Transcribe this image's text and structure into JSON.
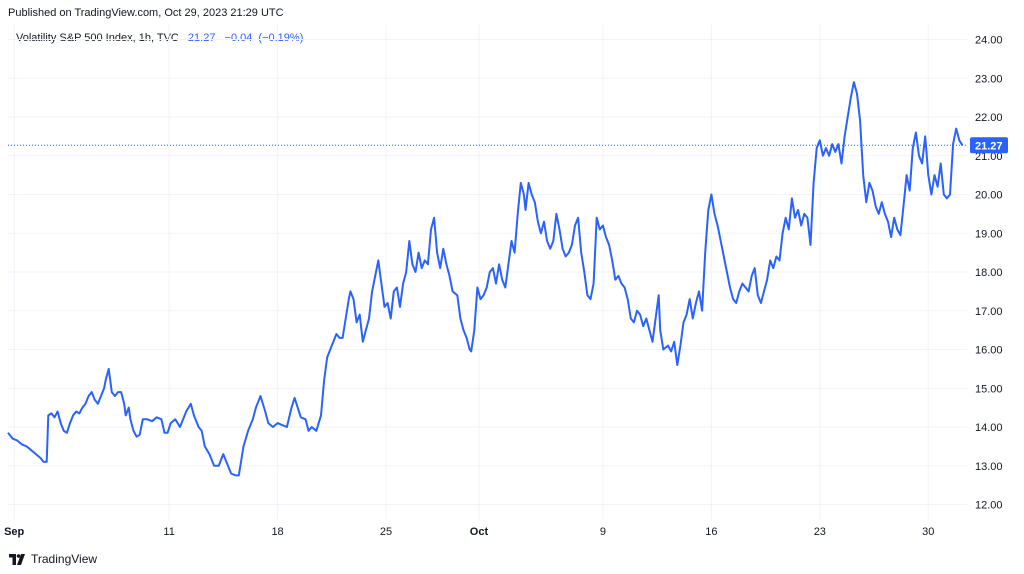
{
  "header": {
    "published": "Published on TradingView.com, Oct 29, 2023 21:29 UTC"
  },
  "legend": {
    "symbol": "Volatility S&P 500 Index, 1h, TVC",
    "last": "21.27",
    "change": "−0.04",
    "change_pct": "(−0.19%)"
  },
  "price_badge": "21.27",
  "footer": {
    "brand": "TradingView"
  },
  "colors": {
    "line": "#2962ff",
    "badge": "#2962ff",
    "grid": "#f0f3fa",
    "text": "#131722"
  },
  "chart_data": {
    "type": "line",
    "title": "",
    "xlabel": "",
    "ylabel": "",
    "x_ticks": [
      {
        "label": "Sep",
        "day": 0,
        "bold": true
      },
      {
        "label": "11",
        "day": 10
      },
      {
        "label": "18",
        "day": 17
      },
      {
        "label": "25",
        "day": 24
      },
      {
        "label": "Oct",
        "day": 30,
        "bold": true
      },
      {
        "label": "9",
        "day": 38
      },
      {
        "label": "16",
        "day": 45
      },
      {
        "label": "23",
        "day": 52
      },
      {
        "label": "30",
        "day": 59
      }
    ],
    "y_ticks": [
      "12.00",
      "13.00",
      "14.00",
      "15.00",
      "16.00",
      "17.00",
      "18.00",
      "19.00",
      "20.00",
      "21.00",
      "22.00",
      "23.00",
      "24.00"
    ],
    "ylim": [
      11.6,
      24.4
    ],
    "xlim": [
      0,
      59.5
    ],
    "last_value": 21.27,
    "series": [
      {
        "values": [
          [
            0.0,
            13.85
          ],
          [
            0.3,
            13.7
          ],
          [
            0.6,
            13.65
          ],
          [
            0.9,
            13.55
          ],
          [
            1.2,
            13.5
          ],
          [
            1.5,
            13.4
          ],
          [
            1.8,
            13.3
          ],
          [
            2.1,
            13.2
          ],
          [
            2.3,
            13.1
          ],
          [
            2.5,
            13.1
          ],
          [
            2.6,
            14.3
          ],
          [
            2.8,
            14.35
          ],
          [
            3.0,
            14.25
          ],
          [
            3.2,
            14.4
          ],
          [
            3.4,
            14.1
          ],
          [
            3.6,
            13.9
          ],
          [
            3.8,
            13.85
          ],
          [
            4.0,
            14.1
          ],
          [
            4.2,
            14.3
          ],
          [
            4.4,
            14.4
          ],
          [
            4.6,
            14.35
          ],
          [
            4.8,
            14.5
          ],
          [
            5.0,
            14.6
          ],
          [
            5.2,
            14.8
          ],
          [
            5.4,
            14.9
          ],
          [
            5.6,
            14.7
          ],
          [
            5.8,
            14.6
          ],
          [
            6.0,
            14.8
          ],
          [
            6.2,
            15.0
          ],
          [
            6.3,
            15.2
          ],
          [
            6.5,
            15.5
          ],
          [
            6.6,
            15.2
          ],
          [
            6.7,
            14.9
          ],
          [
            6.9,
            14.8
          ],
          [
            7.1,
            14.9
          ],
          [
            7.3,
            14.9
          ],
          [
            7.5,
            14.6
          ],
          [
            7.6,
            14.3
          ],
          [
            7.8,
            14.5
          ],
          [
            7.9,
            14.2
          ],
          [
            8.1,
            13.9
          ],
          [
            8.3,
            13.75
          ],
          [
            8.5,
            13.8
          ],
          [
            8.7,
            14.2
          ],
          [
            9.0,
            14.2
          ],
          [
            9.3,
            14.15
          ],
          [
            9.6,
            14.25
          ],
          [
            9.9,
            14.2
          ],
          [
            10.1,
            13.85
          ],
          [
            10.3,
            13.85
          ],
          [
            10.5,
            14.1
          ],
          [
            10.8,
            14.2
          ],
          [
            11.1,
            14.0
          ],
          [
            11.3,
            14.2
          ],
          [
            11.5,
            14.4
          ],
          [
            11.8,
            14.6
          ],
          [
            12.0,
            14.3
          ],
          [
            12.3,
            14.0
          ],
          [
            12.5,
            13.9
          ],
          [
            12.7,
            13.5
          ],
          [
            13.0,
            13.3
          ],
          [
            13.3,
            13.0
          ],
          [
            13.6,
            13.0
          ],
          [
            13.9,
            13.3
          ],
          [
            14.1,
            13.1
          ],
          [
            14.4,
            12.8
          ],
          [
            14.7,
            12.75
          ],
          [
            14.9,
            12.75
          ],
          [
            15.2,
            13.5
          ],
          [
            15.5,
            13.9
          ],
          [
            15.8,
            14.2
          ],
          [
            16.0,
            14.5
          ],
          [
            16.3,
            14.8
          ],
          [
            16.6,
            14.4
          ],
          [
            16.8,
            14.1
          ],
          [
            17.1,
            14.0
          ],
          [
            17.4,
            14.1
          ],
          [
            17.7,
            14.05
          ],
          [
            18.0,
            14.0
          ],
          [
            18.3,
            14.5
          ],
          [
            18.5,
            14.75
          ],
          [
            18.7,
            14.5
          ],
          [
            18.9,
            14.25
          ],
          [
            19.2,
            14.2
          ],
          [
            19.4,
            13.9
          ],
          [
            19.6,
            14.0
          ],
          [
            19.9,
            13.9
          ],
          [
            20.2,
            14.3
          ],
          [
            20.4,
            15.2
          ],
          [
            20.6,
            15.8
          ],
          [
            20.9,
            16.1
          ],
          [
            21.2,
            16.4
          ],
          [
            21.4,
            16.3
          ],
          [
            21.6,
            16.3
          ],
          [
            21.8,
            16.8
          ],
          [
            22.0,
            17.3
          ],
          [
            22.1,
            17.5
          ],
          [
            22.3,
            17.3
          ],
          [
            22.5,
            16.7
          ],
          [
            22.7,
            16.9
          ],
          [
            22.9,
            16.2
          ],
          [
            23.1,
            16.5
          ],
          [
            23.3,
            16.8
          ],
          [
            23.5,
            17.5
          ],
          [
            23.7,
            17.9
          ],
          [
            23.9,
            18.3
          ],
          [
            24.1,
            17.7
          ],
          [
            24.3,
            17.1
          ],
          [
            24.5,
            17.2
          ],
          [
            24.7,
            16.8
          ],
          [
            24.9,
            17.5
          ],
          [
            25.1,
            17.6
          ],
          [
            25.3,
            17.1
          ],
          [
            25.5,
            17.7
          ],
          [
            25.7,
            18.0
          ],
          [
            25.9,
            18.8
          ],
          [
            26.1,
            18.2
          ],
          [
            26.3,
            18.0
          ],
          [
            26.5,
            18.5
          ],
          [
            26.7,
            18.1
          ],
          [
            26.9,
            18.3
          ],
          [
            27.1,
            18.2
          ],
          [
            27.3,
            19.1
          ],
          [
            27.5,
            19.4
          ],
          [
            27.7,
            18.5
          ],
          [
            27.9,
            18.1
          ],
          [
            28.1,
            18.6
          ],
          [
            28.3,
            18.2
          ],
          [
            28.5,
            17.9
          ],
          [
            28.7,
            17.5
          ],
          [
            29.0,
            17.4
          ],
          [
            29.2,
            16.8
          ],
          [
            29.4,
            16.5
          ],
          [
            29.6,
            16.3
          ],
          [
            29.8,
            16.0
          ],
          [
            29.9,
            15.95
          ],
          [
            30.1,
            16.5
          ],
          [
            30.3,
            17.6
          ],
          [
            30.5,
            17.3
          ],
          [
            30.7,
            17.4
          ],
          [
            30.9,
            17.6
          ],
          [
            31.1,
            18.0
          ],
          [
            31.3,
            18.1
          ],
          [
            31.5,
            17.7
          ],
          [
            31.7,
            18.2
          ],
          [
            31.9,
            17.8
          ],
          [
            32.1,
            17.6
          ],
          [
            32.3,
            18.2
          ],
          [
            32.5,
            18.8
          ],
          [
            32.7,
            18.5
          ],
          [
            32.9,
            19.5
          ],
          [
            33.1,
            20.3
          ],
          [
            33.3,
            20.0
          ],
          [
            33.4,
            19.6
          ],
          [
            33.6,
            20.3
          ],
          [
            33.8,
            20.0
          ],
          [
            34.0,
            19.8
          ],
          [
            34.2,
            19.3
          ],
          [
            34.4,
            19.0
          ],
          [
            34.6,
            19.3
          ],
          [
            34.8,
            18.8
          ],
          [
            35.0,
            18.6
          ],
          [
            35.2,
            18.8
          ],
          [
            35.4,
            19.5
          ],
          [
            35.6,
            19.1
          ],
          [
            35.8,
            18.6
          ],
          [
            36.0,
            18.4
          ],
          [
            36.2,
            18.5
          ],
          [
            36.4,
            18.7
          ],
          [
            36.6,
            19.2
          ],
          [
            36.8,
            19.4
          ],
          [
            37.0,
            18.5
          ],
          [
            37.2,
            18.0
          ],
          [
            37.4,
            17.4
          ],
          [
            37.6,
            17.3
          ],
          [
            37.8,
            17.7
          ],
          [
            38.0,
            19.4
          ],
          [
            38.2,
            19.1
          ],
          [
            38.4,
            19.2
          ],
          [
            38.6,
            18.9
          ],
          [
            38.8,
            18.7
          ],
          [
            39.0,
            18.3
          ],
          [
            39.2,
            17.8
          ],
          [
            39.4,
            17.9
          ],
          [
            39.6,
            17.7
          ],
          [
            39.8,
            17.6
          ],
          [
            40.0,
            17.3
          ],
          [
            40.2,
            16.8
          ],
          [
            40.4,
            16.7
          ],
          [
            40.6,
            17.0
          ],
          [
            40.8,
            16.9
          ],
          [
            41.0,
            16.6
          ],
          [
            41.2,
            16.8
          ],
          [
            41.4,
            16.5
          ],
          [
            41.6,
            16.2
          ],
          [
            41.8,
            16.8
          ],
          [
            42.0,
            17.4
          ],
          [
            42.1,
            16.5
          ],
          [
            42.3,
            16.0
          ],
          [
            42.6,
            16.1
          ],
          [
            42.8,
            15.95
          ],
          [
            43.0,
            16.2
          ],
          [
            43.2,
            15.6
          ],
          [
            43.4,
            16.1
          ],
          [
            43.6,
            16.7
          ],
          [
            43.8,
            16.9
          ],
          [
            44.0,
            17.3
          ],
          [
            44.2,
            16.8
          ],
          [
            44.4,
            17.2
          ],
          [
            44.6,
            17.5
          ],
          [
            44.8,
            17.0
          ],
          [
            45.0,
            18.5
          ],
          [
            45.2,
            19.6
          ],
          [
            45.4,
            20.0
          ],
          [
            45.6,
            19.5
          ],
          [
            45.8,
            19.2
          ],
          [
            46.0,
            18.8
          ],
          [
            46.2,
            18.4
          ],
          [
            46.4,
            18.0
          ],
          [
            46.6,
            17.6
          ],
          [
            46.8,
            17.3
          ],
          [
            47.0,
            17.2
          ],
          [
            47.2,
            17.5
          ],
          [
            47.4,
            17.7
          ],
          [
            47.6,
            17.6
          ],
          [
            47.8,
            17.5
          ],
          [
            48.0,
            17.9
          ],
          [
            48.2,
            18.1
          ],
          [
            48.4,
            17.4
          ],
          [
            48.6,
            17.2
          ],
          [
            48.8,
            17.5
          ],
          [
            49.0,
            17.8
          ],
          [
            49.2,
            18.3
          ],
          [
            49.4,
            18.1
          ],
          [
            49.6,
            18.4
          ],
          [
            49.8,
            18.3
          ],
          [
            50.0,
            19.0
          ],
          [
            50.2,
            19.4
          ],
          [
            50.4,
            19.1
          ],
          [
            50.6,
            19.9
          ],
          [
            50.8,
            19.4
          ],
          [
            51.0,
            19.6
          ],
          [
            51.2,
            19.2
          ],
          [
            51.4,
            19.5
          ],
          [
            51.6,
            19.4
          ],
          [
            51.8,
            18.7
          ],
          [
            52.0,
            20.3
          ],
          [
            52.2,
            21.2
          ],
          [
            52.4,
            21.4
          ],
          [
            52.6,
            21.0
          ],
          [
            52.8,
            21.2
          ],
          [
            53.0,
            21.0
          ],
          [
            53.2,
            21.3
          ],
          [
            53.4,
            21.1
          ],
          [
            53.6,
            21.3
          ],
          [
            53.8,
            20.8
          ],
          [
            54.0,
            21.5
          ],
          [
            54.2,
            22.0
          ],
          [
            54.4,
            22.5
          ],
          [
            54.6,
            22.9
          ],
          [
            54.8,
            22.6
          ],
          [
            55.0,
            21.9
          ],
          [
            55.2,
            20.5
          ],
          [
            55.4,
            19.8
          ],
          [
            55.6,
            20.3
          ],
          [
            55.8,
            20.1
          ],
          [
            56.0,
            19.7
          ],
          [
            56.2,
            19.5
          ],
          [
            56.4,
            19.8
          ],
          [
            56.6,
            19.5
          ],
          [
            56.8,
            19.3
          ],
          [
            57.0,
            18.9
          ],
          [
            57.2,
            19.4
          ],
          [
            57.4,
            19.1
          ],
          [
            57.6,
            18.95
          ],
          [
            57.8,
            19.7
          ],
          [
            58.0,
            20.5
          ],
          [
            58.2,
            20.1
          ],
          [
            58.4,
            21.2
          ],
          [
            58.6,
            21.6
          ],
          [
            58.8,
            21.0
          ],
          [
            59.0,
            20.8
          ],
          [
            59.2,
            21.5
          ],
          [
            59.4,
            20.5
          ],
          [
            59.6,
            20.0
          ],
          [
            59.8,
            20.5
          ],
          [
            60.0,
            20.2
          ],
          [
            60.2,
            20.8
          ],
          [
            60.4,
            20.0
          ],
          [
            60.6,
            19.9
          ],
          [
            60.8,
            20.0
          ],
          [
            61.0,
            21.3
          ],
          [
            61.2,
            21.7
          ],
          [
            61.4,
            21.4
          ],
          [
            61.6,
            21.27
          ]
        ]
      }
    ]
  }
}
